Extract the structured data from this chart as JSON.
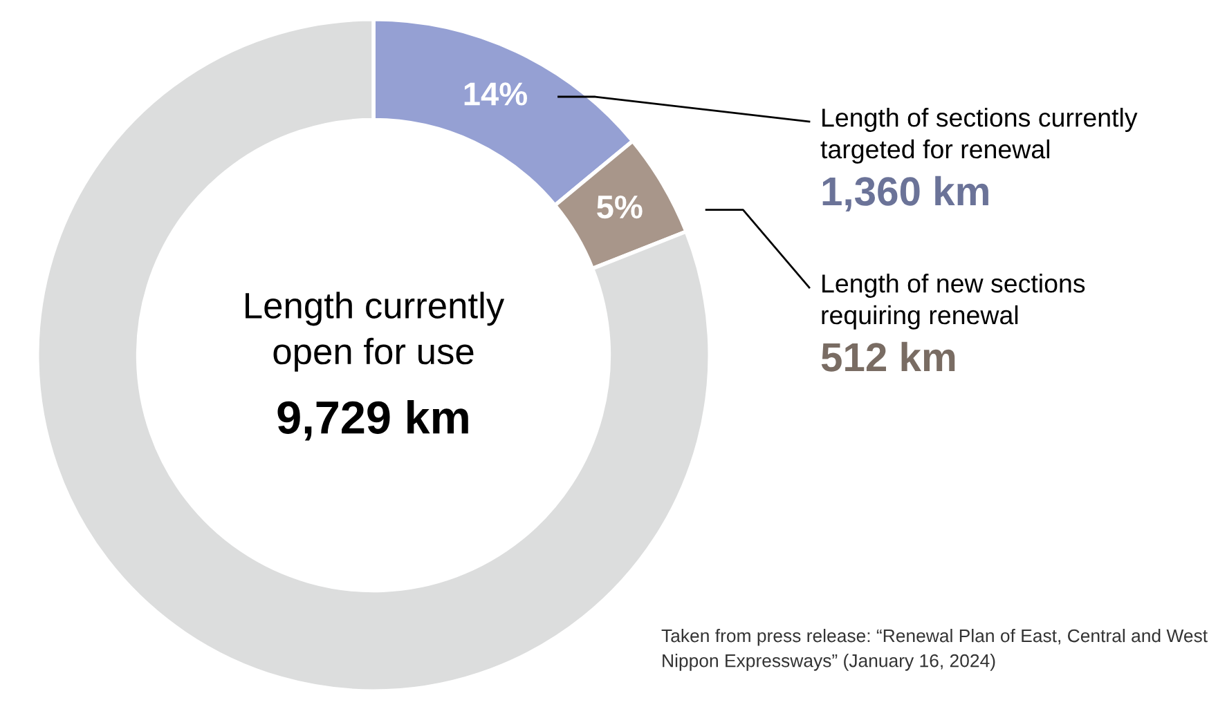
{
  "chart_data": {
    "type": "donut",
    "categories": [
      "Length of sections currently targeted for renewal",
      "Length of new sections requiring renewal",
      "Length currently open for use"
    ],
    "values": [
      14,
      5,
      81
    ],
    "colors": [
      "#95a0d3",
      "#a8968a",
      "#dcdddd"
    ],
    "value_labels": [
      "14%",
      "5%",
      null
    ],
    "annotations": [
      {
        "text": "1,360 km",
        "x": "Length of sections currently targeted for renewal"
      },
      {
        "text": "512 km",
        "x": "Length of new sections requiring renewal"
      },
      {
        "text": "9,729 km",
        "x": "Length currently open for use"
      },
      "Taken from press release: “Renewal Plan of East, Central and West Nippon Expressways” (January 16, 2024)"
    ],
    "legend": false
  }
}
